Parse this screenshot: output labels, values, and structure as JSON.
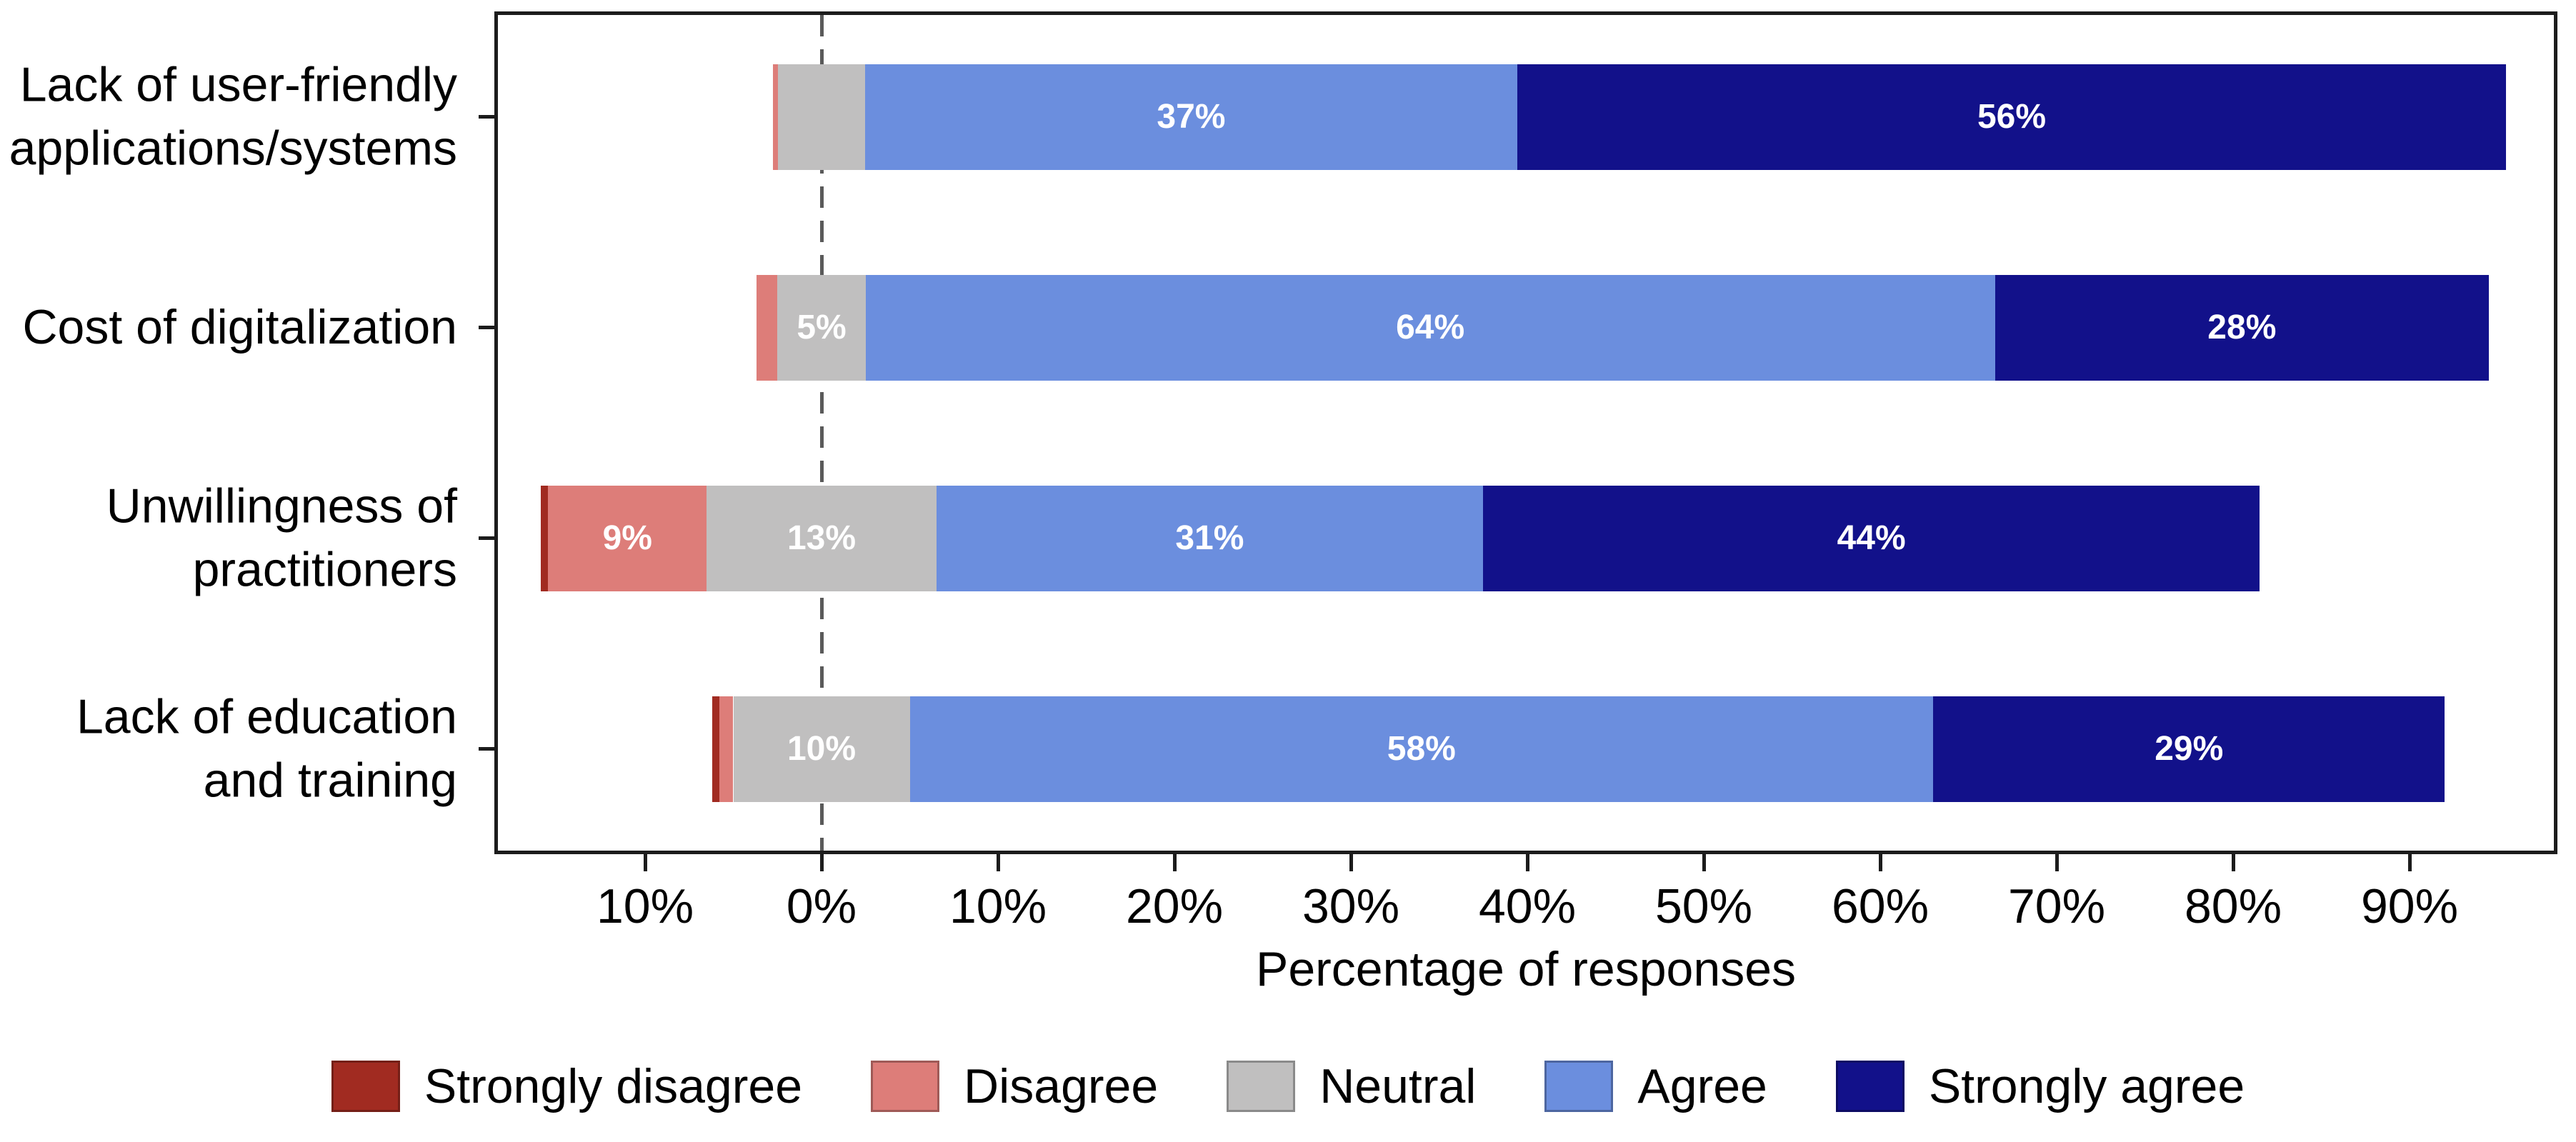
{
  "chart_data": {
    "type": "bar",
    "subtype": "diverging-stacked-horizontal-likert",
    "title": "",
    "xlabel": "Percentage of responses",
    "x_tick_values": [
      -10,
      0,
      10,
      20,
      30,
      40,
      50,
      60,
      70,
      80,
      90
    ],
    "x_tick_labels": [
      "10%",
      "0%",
      "10%",
      "20%",
      "30%",
      "40%",
      "50%",
      "60%",
      "70%",
      "80%",
      "90%"
    ],
    "xlim": [
      -18.5,
      98.3
    ],
    "grid": false,
    "zero_line": {
      "value": 0,
      "style": "dashed",
      "color": "#5a5a5a"
    },
    "neutral_centered_on_zero": true,
    "categories": [
      "Lack of user-friendly applications/systems",
      "Cost of digitalization",
      "Unwillingness of practitioners",
      "Lack of education and training"
    ],
    "category_label_lines": [
      [
        "Lack of user-friendly",
        "applications/systems"
      ],
      [
        "Cost of digitalization"
      ],
      [
        "Unwillingness of",
        "practitioners"
      ],
      [
        "Lack of education",
        "and training"
      ]
    ],
    "series": [
      {
        "name": "Strongly disagree",
        "color": "#a12b21",
        "values": [
          0,
          0,
          0.4,
          0.4
        ],
        "labels": [
          "",
          "",
          "",
          ""
        ]
      },
      {
        "name": "Disagree",
        "color": "#dd7d79",
        "values": [
          0.3,
          1.2,
          9,
          0.8
        ],
        "labels": [
          "",
          "",
          "9%",
          ""
        ]
      },
      {
        "name": "Neutral",
        "color": "#c0bfbf",
        "values": [
          4.9,
          5,
          13,
          10
        ],
        "labels": [
          "",
          "5%",
          "13%",
          "10%"
        ]
      },
      {
        "name": "Agree",
        "color": "#6b8ede",
        "values": [
          37,
          64,
          31,
          58
        ],
        "labels": [
          "37%",
          "64%",
          "31%",
          "58%"
        ]
      },
      {
        "name": "Strongly agree",
        "color": "#12118a",
        "values": [
          56,
          28,
          44,
          29
        ],
        "labels": [
          "56%",
          "28%",
          "44%",
          "29%"
        ]
      }
    ],
    "segment_label_color": "#ffffff",
    "legend": {
      "position": "bottom",
      "entries": [
        "Strongly disagree",
        "Disagree",
        "Neutral",
        "Agree",
        "Strongly agree"
      ]
    }
  }
}
